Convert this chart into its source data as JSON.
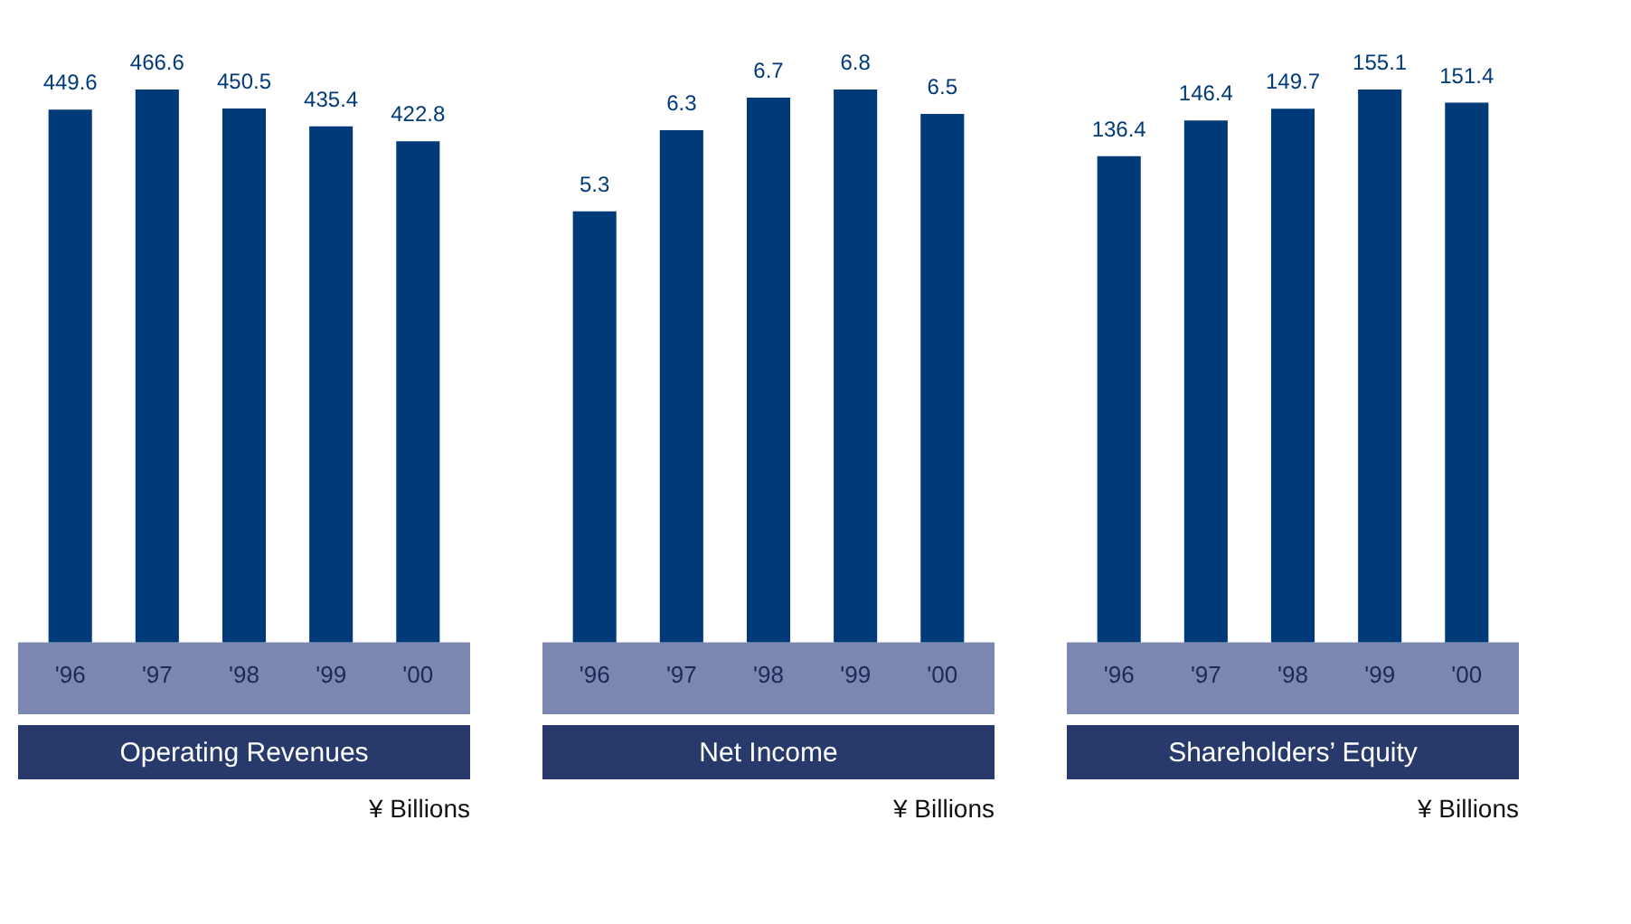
{
  "chart_data": [
    {
      "type": "bar",
      "title": "Operating Revenues",
      "categories": [
        "'96",
        "'97",
        "'98",
        "'99",
        "'00"
      ],
      "values": [
        449.6,
        466.6,
        450.5,
        435.4,
        422.8
      ],
      "color": "#003a78",
      "data_labels": true,
      "annotations": [
        "¥ Billions"
      ]
    },
    {
      "type": "bar",
      "title": "Net Income",
      "categories": [
        "'96",
        "'97",
        "'98",
        "'99",
        "'00"
      ],
      "values": [
        5.3,
        6.3,
        6.7,
        6.8,
        6.5
      ],
      "color": "#003a78",
      "data_labels": true,
      "annotations": [
        "¥ Billions"
      ]
    },
    {
      "type": "bar",
      "title": "Shareholders’ Equity",
      "categories": [
        "'96",
        "'97",
        "'98",
        "'99",
        "'00"
      ],
      "values": [
        136.4,
        146.4,
        149.7,
        155.1,
        151.4
      ],
      "color": "#003a78",
      "data_labels": true,
      "annotations": [
        "¥ Billions"
      ]
    }
  ]
}
